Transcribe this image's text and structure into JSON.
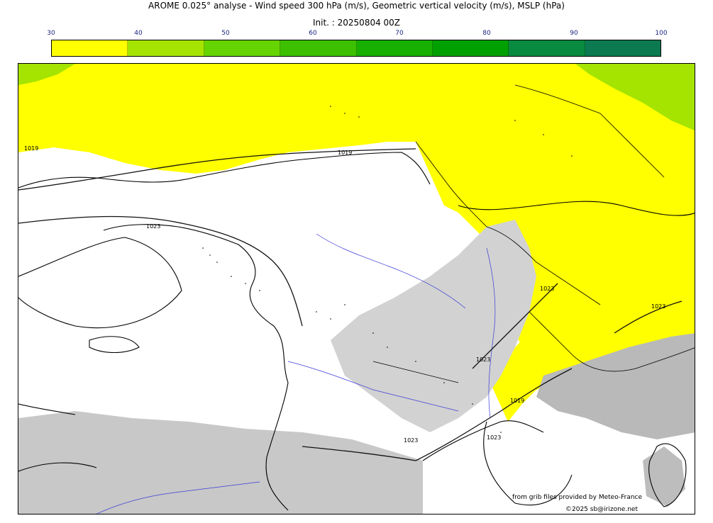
{
  "header": {
    "title": "AROME 0.025° analyse - Wind speed 300 hPa (m/s), Geometric vertical velocity (m/s), MSLP (hPa)",
    "init": "Init. : 20250804 00Z"
  },
  "colorbar": {
    "ticks": [
      "30",
      "40",
      "50",
      "60",
      "70",
      "80",
      "90",
      "100"
    ],
    "colors": [
      "#ffff00",
      "#a5e400",
      "#66d400",
      "#3cc000",
      "#18b000",
      "#00a000",
      "#088a40",
      "#0b7a50"
    ]
  },
  "map": {
    "isobar_labels": [
      "1019",
      "1019",
      "1023",
      "1023",
      "1023",
      "1023",
      "1019",
      "1023",
      "1023"
    ]
  },
  "footer": {
    "source": "from grib files provided by Meteo-France",
    "copyright": "©2025 sb@irizone.net"
  }
}
